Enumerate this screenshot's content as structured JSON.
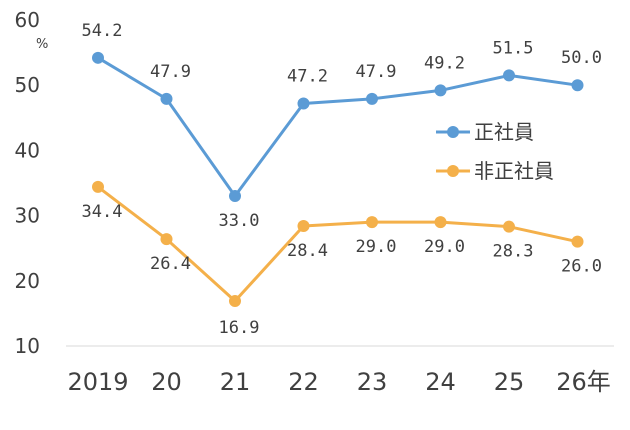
{
  "chart_data": {
    "type": "line",
    "title": "",
    "xlabel": "",
    "ylabel": "",
    "y_unit": "%",
    "categories": [
      "2019",
      "20",
      "21",
      "22",
      "23",
      "24",
      "25",
      "26年"
    ],
    "ylim": [
      10,
      60
    ],
    "yticks": [
      "10",
      "20",
      "30",
      "40",
      "50",
      "60"
    ],
    "grid": false,
    "legend_position": "right",
    "series": [
      {
        "name": "正社員",
        "color": "#5b9bd5",
        "values": [
          54.2,
          47.9,
          33.0,
          47.2,
          47.9,
          49.2,
          51.5,
          50.0
        ],
        "labels": [
          "54.2",
          "47.9",
          "33.0",
          "47.2",
          "47.9",
          "49.2",
          "51.5",
          "50.0"
        ]
      },
      {
        "name": "非正社員",
        "color": "#f4b04a",
        "values": [
          34.4,
          26.4,
          16.9,
          28.4,
          29.0,
          29.0,
          28.3,
          26.0
        ],
        "labels": [
          "34.4",
          "26.4",
          "16.9",
          "28.4",
          "29.0",
          "29.0",
          "28.3",
          "26.0"
        ]
      }
    ]
  }
}
